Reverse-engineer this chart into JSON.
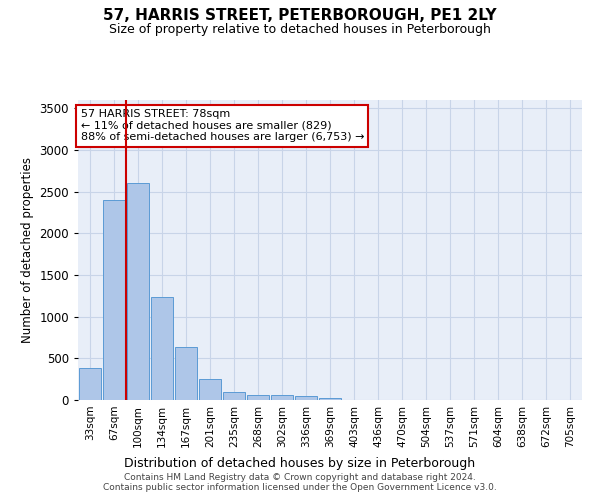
{
  "title": "57, HARRIS STREET, PETERBOROUGH, PE1 2LY",
  "subtitle": "Size of property relative to detached houses in Peterborough",
  "xlabel": "Distribution of detached houses by size in Peterborough",
  "ylabel": "Number of detached properties",
  "categories": [
    "33sqm",
    "67sqm",
    "100sqm",
    "134sqm",
    "167sqm",
    "201sqm",
    "235sqm",
    "268sqm",
    "302sqm",
    "336sqm",
    "369sqm",
    "403sqm",
    "436sqm",
    "470sqm",
    "504sqm",
    "537sqm",
    "571sqm",
    "604sqm",
    "638sqm",
    "672sqm",
    "705sqm"
  ],
  "values": [
    390,
    2400,
    2600,
    1240,
    640,
    255,
    100,
    65,
    60,
    45,
    30,
    0,
    0,
    0,
    0,
    0,
    0,
    0,
    0,
    0,
    0
  ],
  "bar_color": "#aec6e8",
  "bar_edge_color": "#5b9bd5",
  "grid_color": "#c8d4e8",
  "bg_color": "#e8eef8",
  "vline_x": 1.5,
  "vline_color": "#cc0000",
  "annotation_text": "57 HARRIS STREET: 78sqm\n← 11% of detached houses are smaller (829)\n88% of semi-detached houses are larger (6,753) →",
  "annotation_box_color": "#ffffff",
  "annotation_box_edge": "#cc0000",
  "footer": "Contains HM Land Registry data © Crown copyright and database right 2024.\nContains public sector information licensed under the Open Government Licence v3.0.",
  "ylim": [
    0,
    3600
  ],
  "yticks": [
    0,
    500,
    1000,
    1500,
    2000,
    2500,
    3000,
    3500
  ]
}
